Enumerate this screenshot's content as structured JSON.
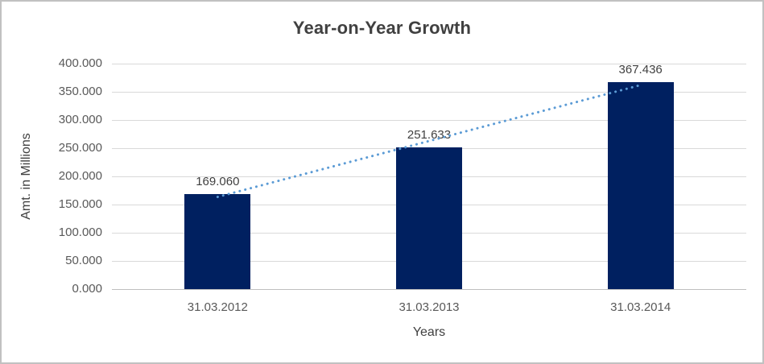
{
  "chart_data": {
    "type": "bar",
    "title": "Year-on-Year Growth",
    "xlabel": "Years",
    "ylabel": "Amt. in Millions",
    "categories": [
      "31.03.2012",
      "31.03.2013",
      "31.03.2014"
    ],
    "values": [
      169.06,
      251.633,
      367.436
    ],
    "data_labels": [
      "169.060",
      "251.633",
      "367.436"
    ],
    "ylim": [
      0,
      400
    ],
    "ytick_step": 50,
    "ytick_labels": [
      "0.000",
      "50.000",
      "100.000",
      "150.000",
      "200.000",
      "250.000",
      "300.000",
      "350.000",
      "400.000"
    ],
    "grid": true,
    "legend_position": "none",
    "trendline": {
      "kind": "linear-regression",
      "style": "dotted"
    },
    "colors": {
      "bar": "#002060",
      "trendline": "#5b9bd5",
      "gridline": "#d9d9d9",
      "axis_line": "#bfbfbf",
      "tick_label": "#595959",
      "title": "#404040",
      "data_label": "#404040",
      "border": "#c1c1c1",
      "background": "#ffffff"
    }
  }
}
